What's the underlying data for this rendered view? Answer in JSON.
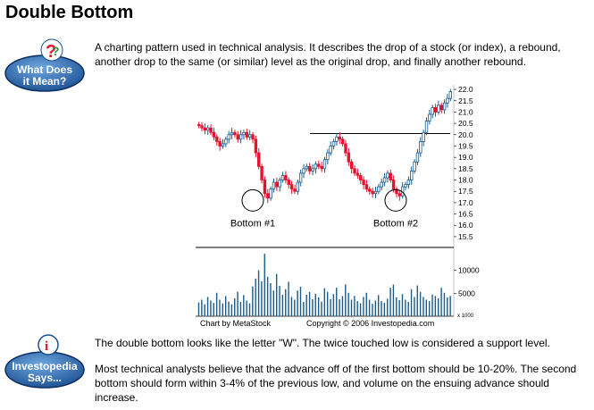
{
  "page": {
    "title": "Double Bottom"
  },
  "badges": {
    "what": {
      "line1": "What Does",
      "line2": "it Mean?"
    },
    "investo": {
      "line1": "Investopedia",
      "line2": "Says..."
    }
  },
  "paragraphs": {
    "definition": "A charting pattern used in technical analysis. It describes the drop of a stock (or index), a rebound, another drop to the same (or similar) level as the original drop, and finally another rebound.",
    "support": "The double bottom looks like the letter \"W\". The twice touched low is considered a support level.",
    "analysis": "Most technical analysts believe that the advance off of the first bottom should be 10-20%. The second bottom should form within 3-4% of the previous low, and volume on the ensuing advance should increase."
  },
  "chart_data": {
    "type": "candlestick",
    "price_ticks": [
      "22.0",
      "21.5",
      "21.0",
      "20.5",
      "20.0",
      "19.5",
      "19.0",
      "18.5",
      "18.0",
      "17.5",
      "17.0",
      "16.5",
      "16.0",
      "15.5"
    ],
    "volume_ticks": [
      "10000",
      "5000"
    ],
    "volume_unit": "x 1000",
    "ylim_price": [
      15.3,
      22.2
    ],
    "ylim_volume": [
      0,
      14000
    ],
    "resistance_level": 20.05,
    "annotations": [
      {
        "label": "Bottom #1",
        "price": 17.1
      },
      {
        "label": "Bottom #2",
        "price": 17.1
      }
    ],
    "closes": [
      20.4,
      20.3,
      20.2,
      20.3,
      20.1,
      19.9,
      19.7,
      19.5,
      19.6,
      19.8,
      20.0,
      20.1,
      20.0,
      19.8,
      20.0,
      20.1,
      19.9,
      20.0,
      19.8,
      19.2,
      18.6,
      18.0,
      17.4,
      17.2,
      17.6,
      17.9,
      17.7,
      18.0,
      18.2,
      18.0,
      17.8,
      17.6,
      17.5,
      17.9,
      18.3,
      18.5,
      18.6,
      18.4,
      18.5,
      18.7,
      18.6,
      18.5,
      18.9,
      19.2,
      19.5,
      19.7,
      19.9,
      19.8,
      19.6,
      19.2,
      18.8,
      18.5,
      18.3,
      18.2,
      18.0,
      17.8,
      17.6,
      17.5,
      17.4,
      17.5,
      17.7,
      17.9,
      18.1,
      18.3,
      18.0,
      17.6,
      17.4,
      17.3,
      17.7,
      17.8,
      18.0,
      18.4,
      18.8,
      19.2,
      19.7,
      20.1,
      20.6,
      20.9,
      21.2,
      21.0,
      21.3,
      21.1,
      21.4,
      21.6,
      21.9
    ],
    "volumes": [
      3000,
      3600,
      2600,
      4200,
      3400,
      2900,
      5100,
      3600,
      2800,
      4400,
      3200,
      2600,
      3900,
      5300,
      3100,
      4600,
      3400,
      2800,
      6500,
      8200,
      10000,
      7600,
      13600,
      8600,
      7200,
      5600,
      9200,
      6600,
      4700,
      5900,
      7500,
      4200,
      3600,
      5600,
      6400,
      3100,
      4700,
      5300,
      3700,
      4900,
      4100,
      3200,
      6100,
      5300,
      3700,
      4800,
      6200,
      3700,
      4400,
      6900,
      5100,
      3600,
      4400,
      3300,
      2800,
      4200,
      5100,
      3600,
      2700,
      3400,
      4600,
      3300,
      2900,
      3800,
      6200,
      6900,
      4100,
      3500,
      4800,
      3600,
      3100,
      5900,
      4200,
      6700,
      5300,
      4200,
      3600,
      3300,
      4700,
      4400,
      3900,
      6200,
      5100,
      4100,
      4400
    ]
  },
  "chart_footer": {
    "credit": "Chart by MetaStock",
    "copyright": "Copyright © 2006 Investopedia.com"
  },
  "colors": {
    "up": "#1a5b8c",
    "down": "#e8112d",
    "badge_blue": "#1e5fa8"
  }
}
